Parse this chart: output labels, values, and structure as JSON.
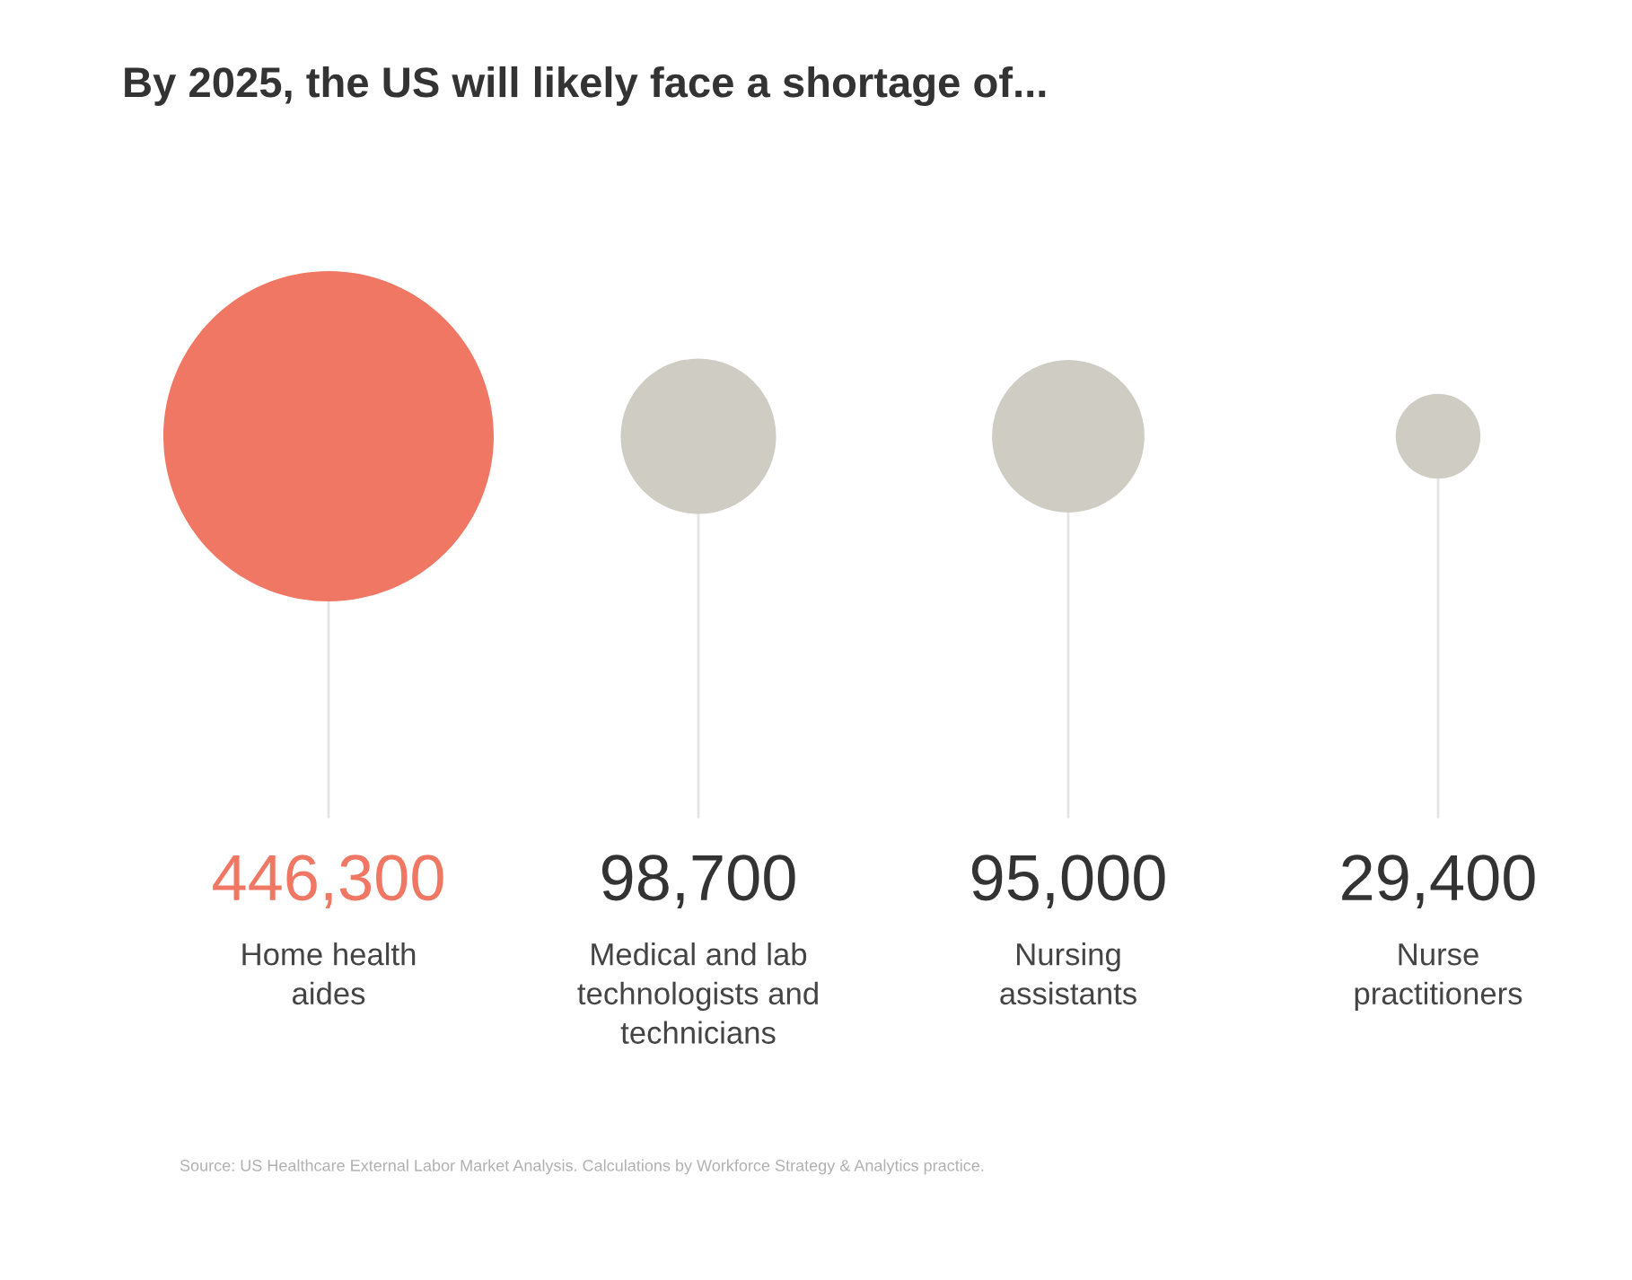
{
  "chart_data": {
    "type": "other",
    "title": "By 2025, the US will likely face a shortage of...",
    "categories": [
      "Home health\naides",
      "Medical and lab\ntechnologists and\ntechnicians",
      "Nursing\nassistants",
      "Nurse\npractitioners"
    ],
    "values": [
      446300,
      98700,
      95000,
      29400
    ],
    "colors": [
      "#f07763",
      "#cfccc4",
      "#cfccc4",
      "#cfccc4"
    ],
    "value_labels": [
      "446,300",
      "98,700",
      "95,000",
      "29,400"
    ],
    "annotations": [
      "Source: US Healthcare External Labor Market Analysis. Calculations by Workforce Strategy & Analytics practice."
    ]
  }
}
